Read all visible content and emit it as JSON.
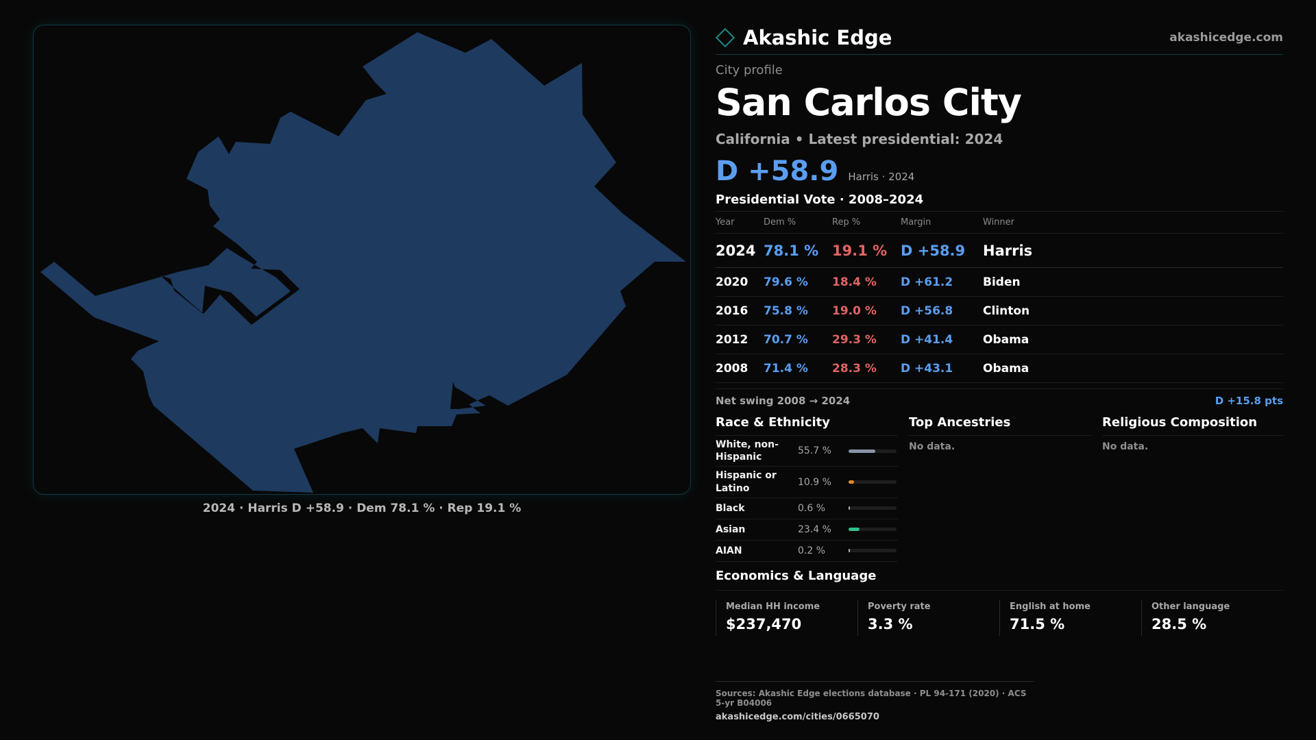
{
  "brand": {
    "name": "Akashic Edge",
    "url": "akashicedge.com"
  },
  "profile": {
    "kicker": "City profile",
    "title": "San Carlos City",
    "subtitle": "California • Latest presidential: 2024",
    "headline_margin": "D +58.9",
    "headline_note": "Harris · 2024"
  },
  "map": {
    "caption": "2024 · Harris D +58.9 · Dem 78.1 % · Rep 19.1 %",
    "fill_color": "#1e3a5f"
  },
  "votes": {
    "title": "Presidential Vote · 2008–2024",
    "headers": [
      "Year",
      "Dem %",
      "Rep %",
      "Margin",
      "Winner"
    ],
    "rows": [
      {
        "year": "2024",
        "dem": "78.1 %",
        "rep": "19.1 %",
        "margin": "D +58.9",
        "winner": "Harris"
      },
      {
        "year": "2020",
        "dem": "79.6 %",
        "rep": "18.4 %",
        "margin": "D +61.2",
        "winner": "Biden"
      },
      {
        "year": "2016",
        "dem": "75.8 %",
        "rep": "19.0 %",
        "margin": "D +56.8",
        "winner": "Clinton"
      },
      {
        "year": "2012",
        "dem": "70.7 %",
        "rep": "29.3 %",
        "margin": "D +41.4",
        "winner": "Obama"
      },
      {
        "year": "2008",
        "dem": "71.4 %",
        "rep": "28.3 %",
        "margin": "D +43.1",
        "winner": "Obama"
      }
    ],
    "swing_label": "Net swing 2008 → 2024",
    "swing_value": "D +15.8 pts"
  },
  "race": {
    "title": "Race & Ethnicity",
    "rows": [
      {
        "name": "White, non-Hispanic",
        "pct_label": "55.7 %",
        "share": 0.557,
        "color": "#8a94a6"
      },
      {
        "name": "Hispanic or Latino",
        "pct_label": "10.9 %",
        "share": 0.109,
        "color": "#e08a2a"
      },
      {
        "name": "Black",
        "pct_label": "0.6 %",
        "share": 0.006,
        "color": "#b0b0b0"
      },
      {
        "name": "Asian",
        "pct_label": "23.4 %",
        "share": 0.234,
        "color": "#2fbf8a"
      },
      {
        "name": "AIAN",
        "pct_label": "0.2 %",
        "share": 0.002,
        "color": "#b0b0b0"
      }
    ]
  },
  "ancestries": {
    "title": "Top Ancestries",
    "empty": "No data."
  },
  "religion": {
    "title": "Religious Composition",
    "empty": "No data."
  },
  "economics": {
    "title": "Economics & Language",
    "cells": [
      {
        "label": "Median HH income",
        "value": "$237,470"
      },
      {
        "label": "Poverty rate",
        "value": "3.3 %"
      },
      {
        "label": "English at home",
        "value": "71.5 %"
      },
      {
        "label": "Other language",
        "value": "28.5 %"
      }
    ]
  },
  "footer": {
    "sources": "Sources: Akashic Edge elections database · PL 94-171 (2020) · ACS 5-yr B04006",
    "url": "akashicedge.com/cities/0665070"
  }
}
